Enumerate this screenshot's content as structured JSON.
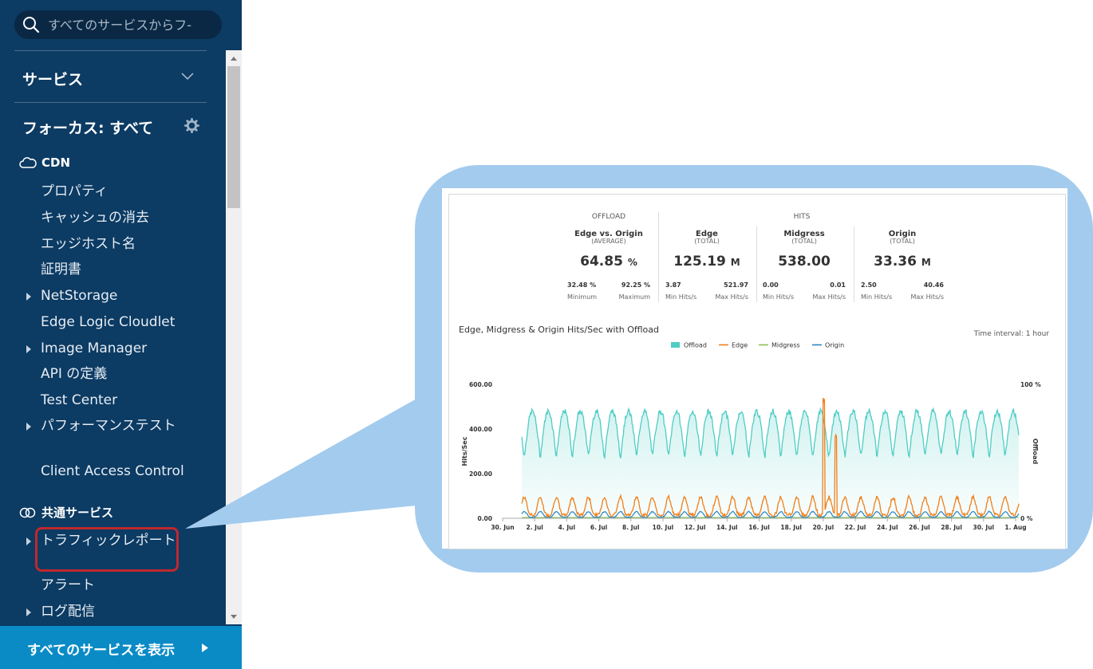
{
  "search": {
    "placeholder": "すべてのサービスからフ-"
  },
  "sidebar": {
    "services_header": "サービス",
    "focus_header": "フォーカス: すべて",
    "cdn_category": "CDN",
    "cdn_items": [
      {
        "label": "プロパティ",
        "expandable": false
      },
      {
        "label": "キャッシュの消去",
        "expandable": false
      },
      {
        "label": "エッジホスト名",
        "expandable": false
      },
      {
        "label": "証明書",
        "expandable": false
      },
      {
        "label": "NetStorage",
        "expandable": true
      },
      {
        "label": "Edge Logic Cloudlet",
        "expandable": false
      },
      {
        "label": "Image Manager",
        "expandable": true
      },
      {
        "label": "API の定義",
        "expandable": false
      },
      {
        "label": "Test Center",
        "expandable": false
      },
      {
        "label": "パフォーマンステスト",
        "expandable": true
      },
      {
        "label": "Client Access Control",
        "expandable": false
      }
    ],
    "common_category": "共通サービス",
    "common_items": [
      {
        "label": "トラフィックレポート",
        "expandable": true,
        "highlighted": true
      },
      {
        "label": "アラート",
        "expandable": false
      },
      {
        "label": "ログ配信",
        "expandable": true
      }
    ],
    "show_all_label": "すべてのサービスを表示"
  },
  "report": {
    "offload_header": "OFFLOAD",
    "hits_header": "HITS",
    "kpis": [
      {
        "title": "Edge vs. Origin",
        "sub": "(AVERAGE)",
        "value": "64.85",
        "unit": "%",
        "min_v": "32.48 %",
        "min_l": "Minimum",
        "max_v": "92.25 %",
        "max_l": "Maximum"
      },
      {
        "title": "Edge",
        "sub": "(TOTAL)",
        "value": "125.19",
        "unit": "M",
        "min_v": "3.87",
        "min_l": "Min Hits/s",
        "max_v": "521.97",
        "max_l": "Max Hits/s"
      },
      {
        "title": "Midgress",
        "sub": "(TOTAL)",
        "value": "538.00",
        "unit": "",
        "min_v": "0.00",
        "min_l": "Min Hits/s",
        "max_v": "0.01",
        "max_l": "Max Hits/s"
      },
      {
        "title": "Origin",
        "sub": "(TOTAL)",
        "value": "33.36",
        "unit": "M",
        "min_v": "2.50",
        "min_l": "Min Hits/s",
        "max_v": "40.46",
        "max_l": "Max Hits/s"
      }
    ],
    "time_interval": "Time interval: 1 hour"
  },
  "colors": {
    "offload": "#4ecdc4",
    "edge": "#f07f1a",
    "midgress": "#8cc152",
    "origin": "#2a86c5",
    "sidebar": "#0c3b63",
    "callout": "#a3cbee"
  },
  "chart_data": {
    "type": "line",
    "title": "Edge, Midgress & Origin Hits/Sec with Offload",
    "ylabel": "Hits/Sec",
    "y2label": "Offload",
    "ylim": [
      0,
      600
    ],
    "y_ticks": [
      "0.00",
      "200.00",
      "400.00",
      "600.00"
    ],
    "y2_ticks": [
      "0 %",
      "100 %"
    ],
    "x_ticks": [
      "30. Jun",
      "2. Jul",
      "4. Jul",
      "6. Jul",
      "8. Jul",
      "10. Jul",
      "12. Jul",
      "14. Jul",
      "16. Jul",
      "18. Jul",
      "20. Jul",
      "22. Jul",
      "24. Jul",
      "26. Jul",
      "28. Jul",
      "30. Jul",
      "1. Aug"
    ],
    "legend_position": "top-center",
    "series": [
      {
        "name": "Offload",
        "type": "area",
        "axis": "right",
        "daily_high_pct": 80,
        "daily_low_pct": 45
      },
      {
        "name": "Edge",
        "axis": "left",
        "daily_high": 95,
        "daily_low": 15,
        "spikes": [
          {
            "date": "18. Jul",
            "value": 540
          },
          {
            "date": "19. Jul",
            "value": 390
          }
        ]
      },
      {
        "name": "Midgress",
        "axis": "left",
        "value": 0
      },
      {
        "name": "Origin",
        "axis": "left",
        "daily_high": 30,
        "daily_low": 5
      }
    ]
  }
}
